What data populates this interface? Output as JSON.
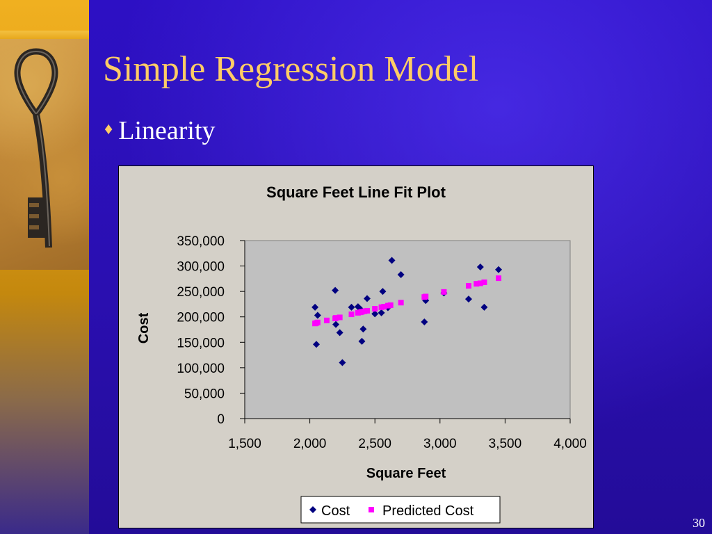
{
  "slide": {
    "title": "Simple Regression Model",
    "bullet": "Linearity",
    "bullet_glyph": "♦",
    "slide_number": "30"
  },
  "colors": {
    "background": "#2a0fb0",
    "title": "#ffcc66",
    "text": "#ffffff",
    "chart_bg": "#d4d0c8",
    "plot_bg": "#c0c0c0",
    "cost_series": "#000080",
    "predicted_series": "#ff00ff"
  },
  "chart_data": {
    "type": "scatter",
    "title": "Square Feet Line Fit  Plot",
    "xlabel": "Square Feet",
    "ylabel": "Cost",
    "xlim": [
      1500,
      4000
    ],
    "ylim": [
      0,
      350000
    ],
    "x_ticks": [
      "1,500",
      "2,000",
      "2,500",
      "3,000",
      "3,500",
      "4,000"
    ],
    "y_ticks": [
      "0",
      "50,000",
      "100,000",
      "150,000",
      "200,000",
      "250,000",
      "300,000",
      "350,000"
    ],
    "legend_position": "bottom",
    "series": [
      {
        "name": "Cost",
        "marker": "diamond",
        "color": "#000080",
        "points": [
          [
            2040,
            219000
          ],
          [
            2050,
            146000
          ],
          [
            2060,
            203000
          ],
          [
            2195,
            252000
          ],
          [
            2200,
            185000
          ],
          [
            2230,
            169000
          ],
          [
            2250,
            110000
          ],
          [
            2320,
            219000
          ],
          [
            2370,
            220000
          ],
          [
            2390,
            215000
          ],
          [
            2400,
            152000
          ],
          [
            2410,
            176000
          ],
          [
            2440,
            236000
          ],
          [
            2500,
            206000
          ],
          [
            2550,
            208000
          ],
          [
            2560,
            250000
          ],
          [
            2600,
            218000
          ],
          [
            2630,
            311000
          ],
          [
            2700,
            283000
          ],
          [
            2880,
            190000
          ],
          [
            2890,
            232000
          ],
          [
            3030,
            247000
          ],
          [
            3220,
            235000
          ],
          [
            3310,
            298000
          ],
          [
            3340,
            219000
          ],
          [
            3450,
            293000
          ]
        ]
      },
      {
        "name": "Predicted Cost",
        "marker": "square",
        "color": "#ff00ff",
        "points": [
          [
            2040,
            187000
          ],
          [
            2050,
            188000
          ],
          [
            2060,
            189000
          ],
          [
            2130,
            193000
          ],
          [
            2195,
            197000
          ],
          [
            2200,
            198000
          ],
          [
            2230,
            199000
          ],
          [
            2320,
            205000
          ],
          [
            2370,
            208000
          ],
          [
            2390,
            209000
          ],
          [
            2400,
            210000
          ],
          [
            2420,
            211000
          ],
          [
            2440,
            212000
          ],
          [
            2500,
            216000
          ],
          [
            2550,
            219000
          ],
          [
            2570,
            220000
          ],
          [
            2600,
            222000
          ],
          [
            2620,
            223000
          ],
          [
            2700,
            228000
          ],
          [
            2880,
            239000
          ],
          [
            2890,
            240000
          ],
          [
            3030,
            249000
          ],
          [
            3220,
            261000
          ],
          [
            3280,
            265000
          ],
          [
            3310,
            266000
          ],
          [
            3340,
            268000
          ],
          [
            3450,
            276000
          ]
        ]
      }
    ]
  }
}
